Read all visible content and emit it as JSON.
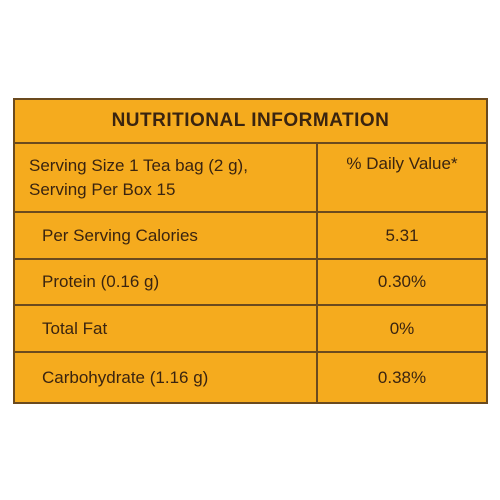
{
  "table": {
    "title": "NUTRITIONAL INFORMATION",
    "header_left_line1": "Serving Size 1 Tea bag (2 g),",
    "header_left_line2": "Serving Per Box 15",
    "header_right": "% Daily Value*",
    "rows": [
      {
        "label": "Per Serving Calories",
        "value": "5.31"
      },
      {
        "label": "Protein (0.16 g)",
        "value": "0.30%"
      },
      {
        "label": "Total Fat",
        "value": "0%"
      },
      {
        "label": "Carbohydrate (1.16 g)",
        "value": "0.38%"
      }
    ]
  },
  "colors": {
    "panel_background": "#f5ab1e",
    "border": "#6b4a1e",
    "text": "#3a2410"
  }
}
